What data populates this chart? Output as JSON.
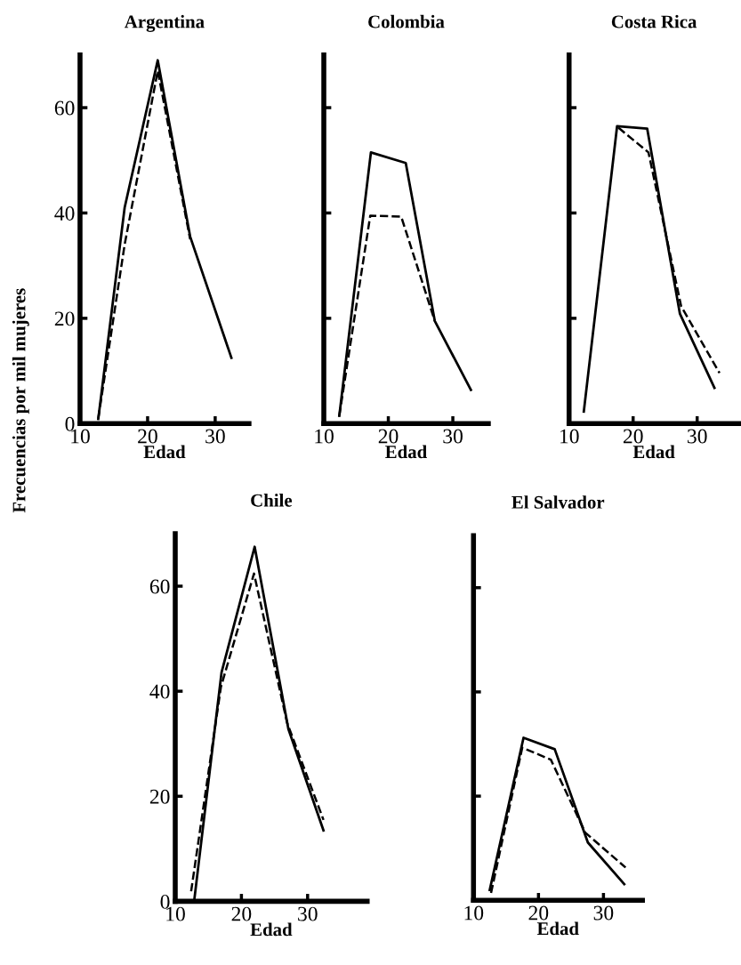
{
  "chart_data": [
    {
      "type": "line",
      "title": "Argentina",
      "xlabel": "Edad",
      "ylabel": "Frecuencias por mil mujeres",
      "xlim": [
        10,
        35
      ],
      "xticks": [
        10,
        20,
        30
      ],
      "ylim": [
        0,
        70
      ],
      "yticks": [
        0,
        20,
        40,
        60
      ],
      "grid": false,
      "legend": false,
      "marker": "none",
      "series": [
        {
          "color": "#000000",
          "line_style": "solid",
          "x": [
            12.7,
            16.6,
            21.5,
            26.3,
            32.4
          ],
          "values": [
            0.9,
            41,
            69,
            35.5,
            12.5
          ]
        },
        {
          "color": "#000000",
          "line_style": "dashed",
          "x": [
            12.7,
            16.6,
            21.5,
            26.3
          ],
          "values": [
            1,
            34,
            67,
            35
          ]
        }
      ]
    },
    {
      "type": "line",
      "title": "Colombia",
      "xlabel": "Edad",
      "xlim": [
        10,
        35.5
      ],
      "xticks": [
        10,
        20,
        30
      ],
      "ylim": [
        0,
        70
      ],
      "yticks": [
        0,
        20,
        40,
        60
      ],
      "tick_labels": "x",
      "grid": false,
      "legend": false,
      "marker": "none",
      "series": [
        {
          "color": "#000000",
          "line_style": "solid",
          "x": [
            12.4,
            17.3,
            22.7,
            27.2,
            32.8
          ],
          "values": [
            1.5,
            51.5,
            49.5,
            19.5,
            6.4
          ]
        },
        {
          "color": "#000000",
          "line_style": "dashed",
          "x": [
            12.4,
            17.2,
            22,
            27.2
          ],
          "values": [
            1.5,
            39.5,
            39.3,
            19.5
          ]
        }
      ]
    },
    {
      "type": "line",
      "title": "Costa Rica",
      "xlabel": "Edad",
      "xlim": [
        10,
        36.5
      ],
      "xticks": [
        10,
        20,
        30
      ],
      "ylim": [
        0,
        70
      ],
      "yticks": [
        0,
        20,
        40,
        60
      ],
      "tick_labels": "x",
      "grid": false,
      "legend": false,
      "marker": "none",
      "series": [
        {
          "color": "#000000",
          "line_style": "solid",
          "x": [
            12.3,
            17.5,
            22.2,
            27.3,
            32.7
          ],
          "values": [
            2.3,
            56.5,
            56,
            20.9,
            6.8
          ]
        },
        {
          "color": "#000000",
          "line_style": "dashed",
          "x": [
            17.7,
            22.4,
            27.5,
            33.5
          ],
          "values": [
            56.2,
            51.5,
            22.3,
            9.6
          ]
        }
      ]
    },
    {
      "type": "line",
      "title": "Chile",
      "xlabel": "Edad",
      "xlim": [
        10,
        39
      ],
      "xticks": [
        10,
        20,
        30
      ],
      "ylim": [
        0,
        70
      ],
      "yticks": [
        0,
        20,
        40,
        60
      ],
      "grid": false,
      "legend": false,
      "marker": "none",
      "series": [
        {
          "color": "#000000",
          "line_style": "solid",
          "x": [
            12.9,
            17,
            22,
            27.1,
            32.4
          ],
          "values": [
            0.5,
            43.6,
            67.5,
            32.8,
            13.5
          ]
        },
        {
          "color": "#000000",
          "line_style": "dashed",
          "x": [
            12.4,
            16.9,
            21.9,
            26.9,
            32.4
          ],
          "values": [
            1.9,
            40.8,
            62.4,
            34,
            15.5
          ]
        }
      ]
    },
    {
      "type": "line",
      "title": "El Salvador",
      "xlabel": "Edad",
      "xlim": [
        10,
        36
      ],
      "xticks": [
        10,
        20,
        30
      ],
      "ylim": [
        0,
        70
      ],
      "yticks": [
        0,
        20,
        40,
        60
      ],
      "tick_labels": "x",
      "grid": false,
      "legend": false,
      "marker": "none",
      "series": [
        {
          "color": "#000000",
          "line_style": "solid",
          "x": [
            12.5,
            17.7,
            22.5,
            27.6,
            33.2
          ],
          "values": [
            2,
            31.2,
            29,
            11.1,
            3.1
          ]
        },
        {
          "color": "#000000",
          "line_style": "dashed",
          "x": [
            12.7,
            17.5,
            21.9,
            27.2,
            33.4
          ],
          "values": [
            1.4,
            29.3,
            27,
            13,
            6.3
          ]
        }
      ]
    }
  ]
}
